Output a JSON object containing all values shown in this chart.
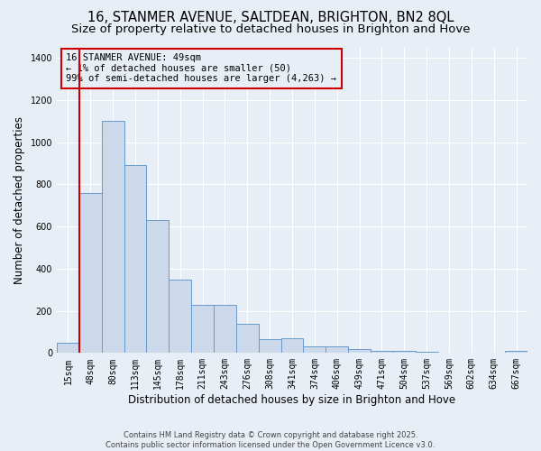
{
  "title_line1": "16, STANMER AVENUE, SALTDEAN, BRIGHTON, BN2 8QL",
  "title_line2": "Size of property relative to detached houses in Brighton and Hove",
  "xlabel": "Distribution of detached houses by size in Brighton and Hove",
  "ylabel": "Number of detached properties",
  "categories": [
    "15sqm",
    "48sqm",
    "80sqm",
    "113sqm",
    "145sqm",
    "178sqm",
    "211sqm",
    "243sqm",
    "276sqm",
    "308sqm",
    "341sqm",
    "374sqm",
    "406sqm",
    "439sqm",
    "471sqm",
    "504sqm",
    "537sqm",
    "569sqm",
    "602sqm",
    "634sqm",
    "667sqm"
  ],
  "values": [
    50,
    760,
    1100,
    890,
    630,
    350,
    230,
    230,
    140,
    65,
    70,
    30,
    30,
    20,
    12,
    10,
    5,
    0,
    0,
    0,
    12
  ],
  "bar_color": "#ccd9ea",
  "bar_edge_color": "#6699cc",
  "bg_color": "#e8eef5",
  "annotation_text": "16 STANMER AVENUE: 49sqm\n← 1% of detached houses are smaller (50)\n99% of semi-detached houses are larger (4,263) →",
  "vline_color": "#cc0000",
  "annotation_box_color": "#cc0000",
  "ylim": [
    0,
    1450
  ],
  "yticks": [
    0,
    200,
    400,
    600,
    800,
    1000,
    1200,
    1400
  ],
  "footer": "Contains HM Land Registry data © Crown copyright and database right 2025.\nContains public sector information licensed under the Open Government Licence v3.0.",
  "title_fontsize": 10.5,
  "subtitle_fontsize": 9.5,
  "annot_fontsize": 7.5,
  "tick_fontsize": 7,
  "ylabel_fontsize": 8.5,
  "xlabel_fontsize": 8.5,
  "footer_fontsize": 6
}
